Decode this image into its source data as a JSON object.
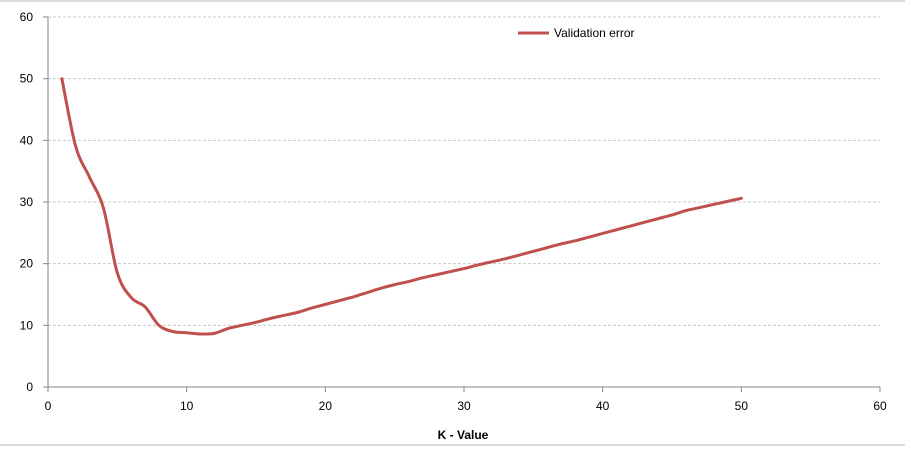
{
  "chart_data": {
    "type": "line",
    "title": "",
    "xlabel": "K - Value",
    "ylabel": "",
    "xlim": [
      0,
      60
    ],
    "ylim": [
      0,
      60
    ],
    "x_ticks": [
      0,
      10,
      20,
      30,
      40,
      50,
      60
    ],
    "y_ticks": [
      0,
      10,
      20,
      30,
      40,
      50,
      60
    ],
    "grid": "horizontal dashed",
    "legend_position": "top-right",
    "series": [
      {
        "name": "Validation error",
        "color": "#c0504d",
        "x": [
          1,
          2,
          3,
          4,
          5,
          6,
          7,
          8,
          9,
          10,
          11,
          12,
          13,
          14,
          15,
          16,
          17,
          18,
          19,
          20,
          21,
          22,
          23,
          24,
          25,
          26,
          27,
          28,
          29,
          30,
          31,
          32,
          33,
          34,
          35,
          36,
          37,
          38,
          39,
          40,
          41,
          42,
          43,
          44,
          45,
          46,
          47,
          48,
          49,
          50
        ],
        "y": [
          50,
          39,
          34,
          29,
          18.5,
          14.5,
          13,
          10,
          9,
          8.8,
          8.6,
          8.7,
          9.5,
          10,
          10.5,
          11.1,
          11.6,
          12.1,
          12.8,
          13.4,
          14,
          14.6,
          15.3,
          16,
          16.6,
          17.1,
          17.7,
          18.2,
          18.7,
          19.2,
          19.8,
          20.3,
          20.8,
          21.4,
          22,
          22.6,
          23.2,
          23.7,
          24.3,
          24.9,
          25.5,
          26.1,
          26.7,
          27.3,
          27.9,
          28.6,
          29.1,
          29.6,
          30.1,
          30.6
        ]
      }
    ]
  }
}
